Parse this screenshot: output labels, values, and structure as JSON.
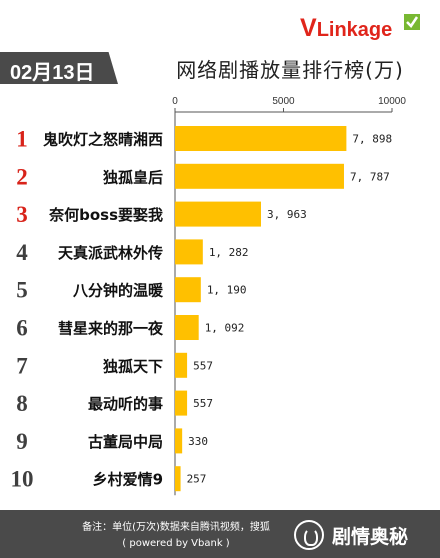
{
  "brand": {
    "v": "V",
    "rest": "Linkage"
  },
  "header": {
    "date": "02月13日",
    "title": "网络剧播放量排行榜(万)"
  },
  "footer": {
    "note_line1": "备注：单位(万次)数据来自腾讯视频，搜狐",
    "note_line2": "( powered by Vbank )",
    "badge": "剧情奥秘"
  },
  "chart_data": {
    "type": "bar",
    "orientation": "horizontal",
    "xlim": [
      0,
      10000
    ],
    "x_ticks": [
      "0",
      "5000",
      "10000"
    ],
    "grid": false,
    "color": "#ffc000",
    "ranks": [
      "1",
      "2",
      "3",
      "4",
      "5",
      "6",
      "7",
      "8",
      "9",
      "10"
    ],
    "categories": [
      "鬼吹灯之怒晴湘西",
      "独孤皇后",
      "奈何boss要娶我",
      "天真派武林外传",
      "八分钟的温暖",
      "彗星来的那一夜",
      "独孤天下",
      "最动听的事",
      "古董局中局",
      "乡村爱情9"
    ],
    "values": [
      7898,
      7787,
      3963,
      1282,
      1190,
      1092,
      557,
      557,
      330,
      257
    ],
    "value_labels": [
      "7, 898",
      "7, 787",
      "3, 963",
      "1, 282",
      "1, 190",
      "1, 092",
      "557",
      "557",
      "330",
      "257"
    ]
  }
}
